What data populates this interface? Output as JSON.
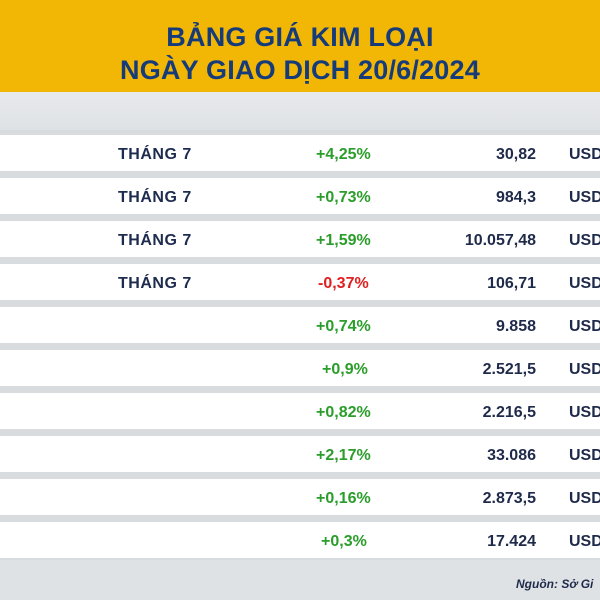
{
  "header": {
    "line1": "BẢNG GIÁ KIM LOẠI",
    "line2": "NGÀY GIAO DỊCH 20/6/2024",
    "bg_color": "#f2b705",
    "text_color": "#163b7a"
  },
  "rows": [
    {
      "month": "THÁNG 7",
      "change": "+4,25%",
      "price": "30,82",
      "unit": "USD"
    },
    {
      "month": "THÁNG 7",
      "change": "+0,73%",
      "price": "984,3",
      "unit": "USD"
    },
    {
      "month": "THÁNG 7",
      "change": "+1,59%",
      "price": "10.057,48",
      "unit": "USD"
    },
    {
      "month": "THÁNG 7",
      "change": "-0,37%",
      "price": "106,71",
      "unit": "USD"
    },
    {
      "month": "",
      "change": "+0,74%",
      "price": "9.858",
      "unit": "USD"
    },
    {
      "month": "",
      "change": "+0,9%",
      "price": "2.521,5",
      "unit": "USD"
    },
    {
      "month": "",
      "change": "+0,82%",
      "price": "2.216,5",
      "unit": "USD"
    },
    {
      "month": "",
      "change": "+2,17%",
      "price": "33.086",
      "unit": "USD"
    },
    {
      "month": "",
      "change": "+0,16%",
      "price": "2.873,5",
      "unit": "USD"
    },
    {
      "month": "",
      "change": "+0,3%",
      "price": "17.424",
      "unit": "USD"
    }
  ],
  "footer": {
    "source": "Nguồn: Sở Gi"
  },
  "colors": {
    "positive": "#2a9d2a",
    "negative": "#e02020"
  }
}
